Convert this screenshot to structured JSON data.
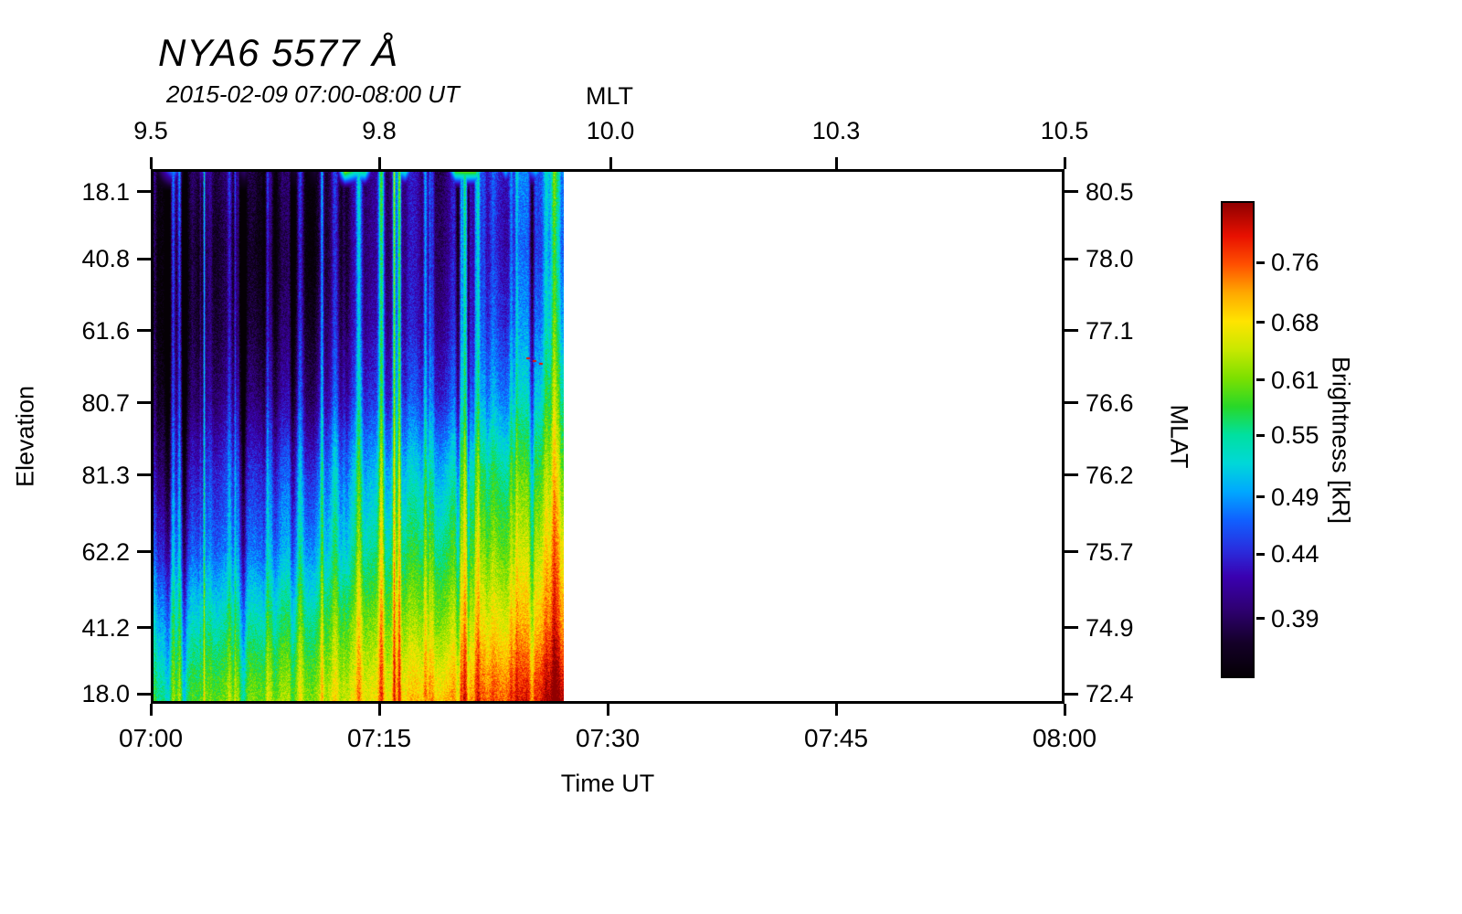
{
  "title": "NYA6 5577 Å",
  "subtitle": "2015-02-09 07:00-08:00 UT",
  "axes": {
    "top": {
      "label": "MLT",
      "ticks": [
        {
          "label": "9.5",
          "pos": 0.0
        },
        {
          "label": "9.8",
          "pos": 0.25
        },
        {
          "label": "10.0",
          "pos": 0.503
        },
        {
          "label": "10.3",
          "pos": 0.75
        },
        {
          "label": "10.5",
          "pos": 1.0
        }
      ]
    },
    "bottom": {
      "label": "Time UT",
      "ticks": [
        {
          "label": "07:00",
          "pos": 0.0
        },
        {
          "label": "07:15",
          "pos": 0.25
        },
        {
          "label": "07:30",
          "pos": 0.5
        },
        {
          "label": "07:45",
          "pos": 0.75
        },
        {
          "label": "08:00",
          "pos": 1.0
        }
      ]
    },
    "left": {
      "label": "Elevation",
      "ticks": [
        {
          "label": "18.1",
          "pos": 0.042
        },
        {
          "label": "40.8",
          "pos": 0.168
        },
        {
          "label": "61.6",
          "pos": 0.302
        },
        {
          "label": "80.7",
          "pos": 0.437
        },
        {
          "label": "81.3",
          "pos": 0.572
        },
        {
          "label": "62.2",
          "pos": 0.716
        },
        {
          "label": "41.2",
          "pos": 0.858
        },
        {
          "label": "18.0",
          "pos": 0.982
        }
      ]
    },
    "right": {
      "label": "MLAT",
      "ticks": [
        {
          "label": "80.5",
          "pos": 0.042
        },
        {
          "label": "78.0",
          "pos": 0.168
        },
        {
          "label": "77.1",
          "pos": 0.302
        },
        {
          "label": "76.6",
          "pos": 0.437
        },
        {
          "label": "76.2",
          "pos": 0.572
        },
        {
          "label": "75.7",
          "pos": 0.716
        },
        {
          "label": "74.9",
          "pos": 0.858
        },
        {
          "label": "72.4",
          "pos": 0.982
        }
      ]
    }
  },
  "colorbar": {
    "label": "Brightness [kR]",
    "ticks": [
      {
        "label": "0.76",
        "pos": 0.126
      },
      {
        "label": "0.68",
        "pos": 0.252
      },
      {
        "label": "0.61",
        "pos": 0.374
      },
      {
        "label": "0.55",
        "pos": 0.491
      },
      {
        "label": "0.49",
        "pos": 0.621
      },
      {
        "label": "0.44",
        "pos": 0.742
      },
      {
        "label": "0.39",
        "pos": 0.878
      }
    ]
  },
  "chart_data": {
    "type": "heatmap",
    "title": "NYA6 5577 Å",
    "date": "2015-02-09",
    "x_axis": {
      "label": "Time UT",
      "range": [
        "07:00",
        "08:00"
      ],
      "data_end": "07:27",
      "data_end_fraction": 0.452
    },
    "top_axis": {
      "label": "MLT",
      "range": [
        9.5,
        10.5
      ],
      "tick_values": [
        9.5,
        9.8,
        10.0,
        10.3,
        10.5
      ]
    },
    "y_axis": {
      "label": "Elevation",
      "tick_values": [
        18.1,
        40.8,
        61.6,
        80.7,
        81.3,
        62.2,
        41.2,
        18.0
      ]
    },
    "right_axis": {
      "label": "MLAT",
      "tick_values": [
        80.5,
        78.0,
        77.1,
        76.6,
        76.2,
        75.7,
        74.9,
        72.4
      ]
    },
    "value_label": "Brightness [kR]",
    "value_scale": "log",
    "value_min": 0.35,
    "value_max": 0.85,
    "colorbar_tick_values": [
      0.76,
      0.68,
      0.61,
      0.55,
      0.49,
      0.44,
      0.39
    ],
    "col_times": [
      "07:00",
      "07:03",
      "07:07",
      "07:10",
      "07:14",
      "07:17",
      "07:20",
      "07:24",
      "07:27"
    ],
    "row_elevations": [
      18.1,
      40.8,
      61.6,
      80.7,
      81.3,
      62.2,
      41.2,
      18.0
    ],
    "values": [
      [
        0.365,
        0.365,
        0.37,
        0.375,
        0.39,
        0.41,
        0.43,
        0.45,
        0.47
      ],
      [
        0.355,
        0.355,
        0.36,
        0.37,
        0.39,
        0.41,
        0.43,
        0.44,
        0.46
      ],
      [
        0.355,
        0.36,
        0.37,
        0.385,
        0.4,
        0.42,
        0.44,
        0.46,
        0.49
      ],
      [
        0.37,
        0.38,
        0.395,
        0.41,
        0.43,
        0.45,
        0.47,
        0.5,
        0.54
      ],
      [
        0.4,
        0.42,
        0.44,
        0.46,
        0.49,
        0.51,
        0.54,
        0.57,
        0.6
      ],
      [
        0.44,
        0.45,
        0.47,
        0.5,
        0.53,
        0.56,
        0.59,
        0.62,
        0.66
      ],
      [
        0.5,
        0.52,
        0.54,
        0.57,
        0.6,
        0.62,
        0.65,
        0.68,
        0.72
      ],
      [
        0.56,
        0.58,
        0.61,
        0.63,
        0.66,
        0.69,
        0.73,
        0.77,
        0.82
      ]
    ],
    "hotspot": {
      "t_frac": 0.93,
      "y_frac": 0.35
    },
    "colormap_stops": [
      {
        "p": 0.0,
        "color": "#050005"
      },
      {
        "p": 0.07,
        "color": "#140028"
      },
      {
        "p": 0.14,
        "color": "#2e0070"
      },
      {
        "p": 0.21,
        "color": "#3a00b0"
      },
      {
        "p": 0.27,
        "color": "#2830e0"
      },
      {
        "p": 0.33,
        "color": "#1060ff"
      },
      {
        "p": 0.39,
        "color": "#00a8ff"
      },
      {
        "p": 0.45,
        "color": "#00d8d8"
      },
      {
        "p": 0.51,
        "color": "#00e0a0"
      },
      {
        "p": 0.57,
        "color": "#28d828"
      },
      {
        "p": 0.63,
        "color": "#7ce000"
      },
      {
        "p": 0.69,
        "color": "#c8e800"
      },
      {
        "p": 0.75,
        "color": "#ffe400"
      },
      {
        "p": 0.81,
        "color": "#ffa800"
      },
      {
        "p": 0.87,
        "color": "#ff5000"
      },
      {
        "p": 0.93,
        "color": "#e81000"
      },
      {
        "p": 1.0,
        "color": "#900000"
      }
    ]
  }
}
